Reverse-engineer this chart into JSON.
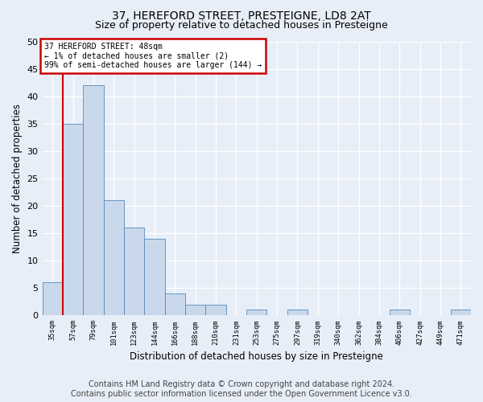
{
  "title": "37, HEREFORD STREET, PRESTEIGNE, LD8 2AT",
  "subtitle": "Size of property relative to detached houses in Presteigne",
  "xlabel": "Distribution of detached houses by size in Presteigne",
  "ylabel": "Number of detached properties",
  "categories": [
    "35sqm",
    "57sqm",
    "79sqm",
    "101sqm",
    "123sqm",
    "144sqm",
    "166sqm",
    "188sqm",
    "210sqm",
    "231sqm",
    "253sqm",
    "275sqm",
    "297sqm",
    "319sqm",
    "340sqm",
    "362sqm",
    "384sqm",
    "406sqm",
    "427sqm",
    "449sqm",
    "471sqm"
  ],
  "values": [
    6,
    35,
    42,
    21,
    16,
    14,
    4,
    2,
    2,
    0,
    1,
    0,
    1,
    0,
    0,
    0,
    0,
    1,
    0,
    0,
    1
  ],
  "bar_color": "#c9d9eb",
  "bar_edge_color": "#5588bb",
  "highlight_line_color": "#cc0000",
  "annotation_text": "37 HEREFORD STREET: 48sqm\n← 1% of detached houses are smaller (2)\n99% of semi-detached houses are larger (144) →",
  "annotation_box_color": "#cc0000",
  "ylim": [
    0,
    50
  ],
  "yticks": [
    0,
    5,
    10,
    15,
    20,
    25,
    30,
    35,
    40,
    45,
    50
  ],
  "footer_line1": "Contains HM Land Registry data © Crown copyright and database right 2024.",
  "footer_line2": "Contains public sector information licensed under the Open Government Licence v3.0.",
  "bg_color": "#e8eef8",
  "plot_bg_color": "#e8eef8",
  "grid_color": "#ffffff",
  "title_fontsize": 10,
  "subtitle_fontsize": 9,
  "xlabel_fontsize": 8.5,
  "ylabel_fontsize": 8.5,
  "footer_fontsize": 7
}
